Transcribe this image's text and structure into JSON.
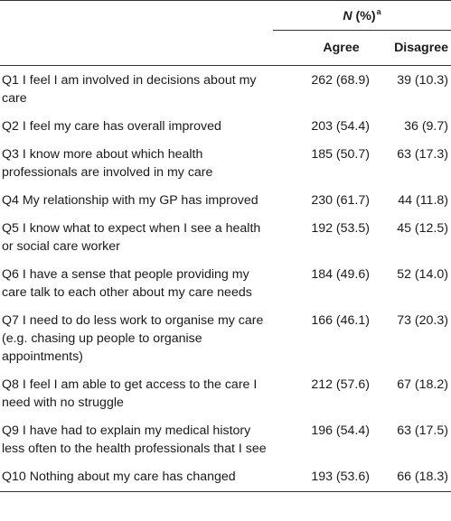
{
  "header": {
    "group_n": "N",
    "group_rest": " (%)",
    "group_sup": "a",
    "agree": "Agree",
    "disagree": "Disagree"
  },
  "rows": [
    {
      "q": "Q1 I feel I am involved in decisions about my care",
      "agree": "262 (68.9)",
      "disagree": "39 (10.3)"
    },
    {
      "q": "Q2 I feel my care has overall improved",
      "agree": "203 (54.4)",
      "disagree": "36 (9.7)"
    },
    {
      "q": "Q3 I know more about which health professionals are involved in my care",
      "agree": "185 (50.7)",
      "disagree": "63 (17.3)"
    },
    {
      "q": "Q4 My relationship with my GP has improved",
      "agree": "230 (61.7)",
      "disagree": "44 (11.8)"
    },
    {
      "q": "Q5 I know what to expect when I see a health or social care worker",
      "agree": "192 (53.5)",
      "disagree": "45 (12.5)"
    },
    {
      "q": "Q6 I have a sense that people providing my care talk to each other about my care needs",
      "agree": "184 (49.6)",
      "disagree": "52 (14.0)"
    },
    {
      "q": "Q7 I need to do less work to organise my care (e.g. chasing up people to organise appointments)",
      "agree": "166 (46.1)",
      "disagree": "73 (20.3)"
    },
    {
      "q": "Q8 I feel I am able to get access to the care I need with no struggle",
      "agree": "212 (57.6)",
      "disagree": "67 (18.2)"
    },
    {
      "q": "Q9 I have had to explain my medical history less often to the health professionals that I see",
      "agree": "196 (54.4)",
      "disagree": "63 (17.5)"
    },
    {
      "q": "Q10 Nothing about my care has changed",
      "agree": "193 (53.6)",
      "disagree": "66 (18.3)"
    }
  ]
}
